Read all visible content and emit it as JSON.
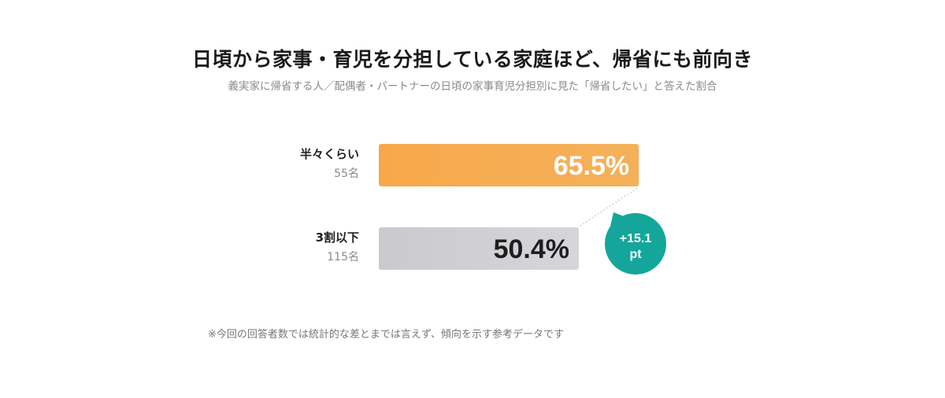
{
  "chart_data": {
    "type": "bar",
    "title": "日頃から家事・育児を分担している家庭ほど、帰省にも前向き",
    "subtitle": "義実家に帰省する人／配偶者・パートナーの日頃の家事育児分担別に見た「帰省したい」と答えた割合",
    "categories": [
      {
        "label": "半々くらい",
        "count": "55名"
      },
      {
        "label": "3割以下",
        "count": "115名"
      }
    ],
    "values": [
      65.5,
      50.4
    ],
    "value_labels": [
      "65.5%",
      "50.4%"
    ],
    "xlim": [
      0,
      100
    ],
    "colors": [
      "#f6aa4e",
      "#cfcfd4"
    ],
    "difference": {
      "line1": "+15.1",
      "line2": "pt",
      "color": "#14a69a"
    },
    "note": "※今回の回答者数では統計的な差とまでは言えず、傾向を示す参考データです"
  }
}
